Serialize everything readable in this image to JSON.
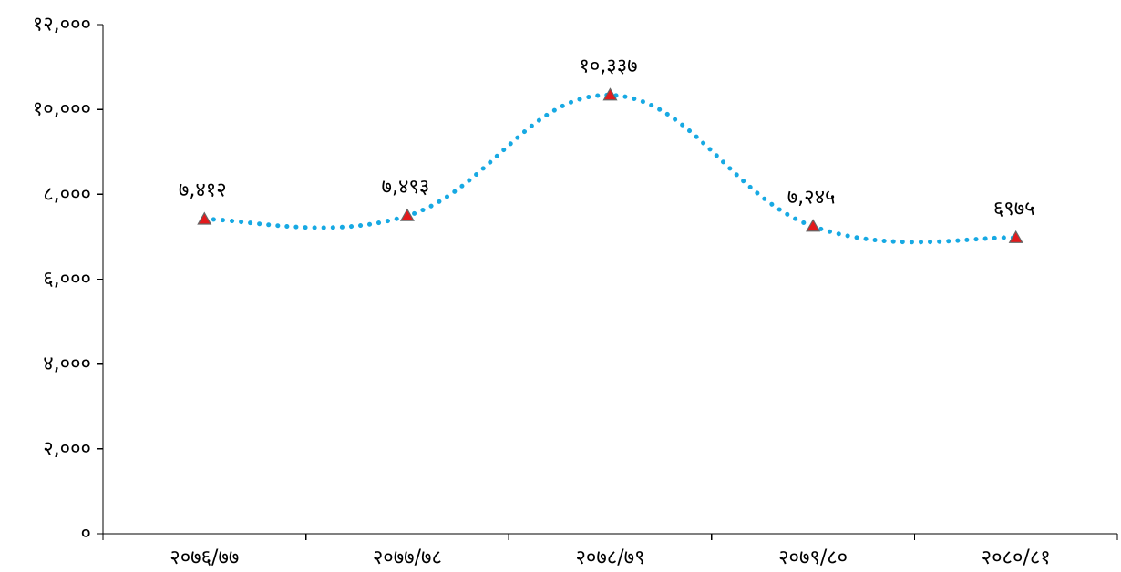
{
  "chart_data": {
    "type": "line",
    "categories": [
      "२०७६/७७",
      "२०७७/७८",
      "२०७८/७९",
      "२०७९/८०",
      "२०८०/८१"
    ],
    "series": [
      {
        "values": [
          7412,
          7493,
          10337,
          7245,
          6975
        ],
        "value_labels": [
          "७,४१२",
          "७,४९३",
          "१०,३३७",
          "७,२४५",
          "६९७५"
        ],
        "line_style": "dotted",
        "smooth": true,
        "marker": "triangle",
        "color": "#17a9e3",
        "marker_color": "#e31a1c"
      }
    ],
    "y_ticks": [
      0,
      2000,
      4000,
      6000,
      8000,
      10000,
      12000
    ],
    "y_tick_labels": [
      "०",
      "२,०००",
      "४,०००",
      "६,०००",
      "८,०००",
      "१०,०००",
      "१२,०००"
    ],
    "ylim": [
      0,
      12000
    ],
    "title": "",
    "xlabel": "",
    "ylabel": "",
    "grid": false,
    "legend": "none"
  }
}
